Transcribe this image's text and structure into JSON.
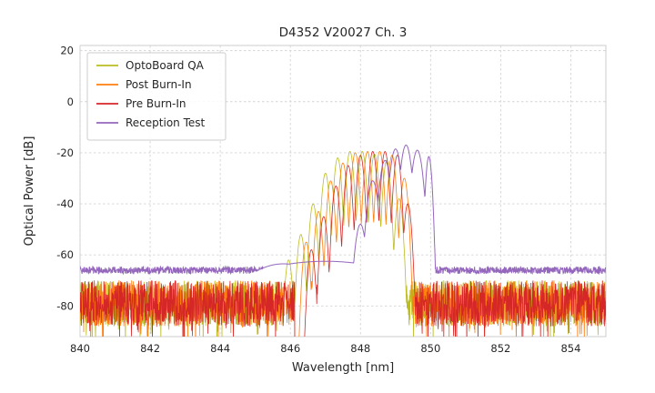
{
  "chart_data": {
    "type": "line",
    "title": "D4352 V20027 Ch. 3",
    "xlabel": "Wavelength [nm]",
    "ylabel": "Optical Power [dB]",
    "xlim": [
      840,
      855
    ],
    "ylim": [
      -92,
      22
    ],
    "xticks": [
      840,
      842,
      844,
      846,
      848,
      850,
      852,
      854
    ],
    "yticks": [
      20,
      0,
      -20,
      -40,
      -60,
      -80
    ],
    "grid": true,
    "legend_position": "upper-left",
    "series": [
      {
        "name": "OptoBoard QA",
        "color": "#bcbd22",
        "seed": 11,
        "line_width": 0.8,
        "noise_floor": -79,
        "noise_spread": 9,
        "deep_spikes": true,
        "noise_gap": [
          846.12,
          846.5
        ],
        "mode_sharpness": 0.033,
        "signal_peaks": [
          [
            845.95,
            -62
          ],
          [
            846.3,
            -52
          ],
          [
            846.65,
            -40
          ],
          [
            847.0,
            -28
          ],
          [
            847.35,
            -22
          ],
          [
            847.7,
            -19.5
          ],
          [
            848.05,
            -19.5
          ],
          [
            848.4,
            -20.5
          ],
          [
            848.75,
            -23
          ],
          [
            849.1,
            -38
          ]
        ]
      },
      {
        "name": "Post Burn-In",
        "color": "#ff7f0e",
        "seed": 22,
        "line_width": 0.8,
        "noise_floor": -79,
        "noise_spread": 9,
        "deep_spikes": true,
        "noise_gap": [
          846.12,
          846.5
        ],
        "mode_sharpness": 0.033,
        "signal_peaks": [
          [
            846.45,
            -55
          ],
          [
            846.8,
            -43
          ],
          [
            847.15,
            -31
          ],
          [
            847.5,
            -24
          ],
          [
            847.85,
            -20
          ],
          [
            848.2,
            -19.5
          ],
          [
            848.55,
            -19.5
          ],
          [
            848.9,
            -21
          ],
          [
            849.25,
            -30
          ]
        ]
      },
      {
        "name": "Pre Burn-In",
        "color": "#d62728",
        "seed": 33,
        "line_width": 0.8,
        "noise_floor": -79,
        "noise_spread": 9,
        "deep_spikes": true,
        "noise_gap": [
          846.12,
          846.5
        ],
        "mode_sharpness": 0.033,
        "signal_peaks": [
          [
            846.6,
            -58
          ],
          [
            846.95,
            -45
          ],
          [
            847.3,
            -33
          ],
          [
            847.65,
            -25
          ],
          [
            848.0,
            -21
          ],
          [
            848.35,
            -19.5
          ],
          [
            848.7,
            -19.5
          ],
          [
            849.05,
            -21
          ],
          [
            849.35,
            -40
          ]
        ]
      },
      {
        "name": "Reception Test",
        "color": "#9467bd",
        "seed": 44,
        "line_width": 1.0,
        "noise_floor": -66,
        "noise_spread": 1.4,
        "deep_spikes": false,
        "mode_sharpness": 0.05,
        "signal_peaks": [
          [
            845.8,
            -63.5,
            0.45
          ],
          [
            847.0,
            -62.5,
            1.0
          ],
          [
            848.0,
            -48
          ],
          [
            848.35,
            -31
          ],
          [
            848.7,
            -23
          ],
          [
            849.0,
            -18.5
          ],
          [
            849.3,
            -17
          ],
          [
            849.62,
            -19
          ],
          [
            849.95,
            -21.5,
            0.028
          ]
        ]
      }
    ]
  }
}
